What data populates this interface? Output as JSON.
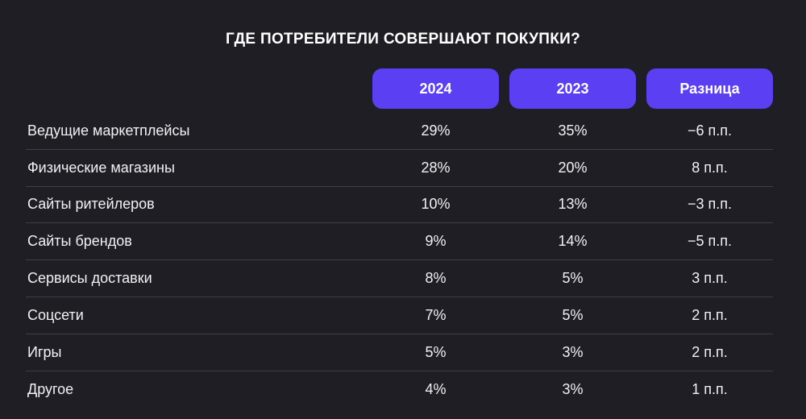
{
  "chart_data": {
    "type": "table",
    "title": "ГДЕ ПОТРЕБИТЕЛИ СОВЕРШАЮТ ПОКУПКИ?",
    "columns": [
      "2024",
      "2023",
      "Разница"
    ],
    "rows": [
      {
        "label": "Ведущие маркетплейсы",
        "values": [
          "29%",
          "35%",
          "−6 п.п."
        ]
      },
      {
        "label": "Физические магазины",
        "values": [
          "28%",
          "20%",
          "8 п.п."
        ]
      },
      {
        "label": "Сайты ритейлеров",
        "values": [
          "10%",
          "13%",
          "−3 п.п."
        ]
      },
      {
        "label": "Сайты брендов",
        "values": [
          "9%",
          "14%",
          "−5 п.п."
        ]
      },
      {
        "label": "Сервисы доставки",
        "values": [
          "8%",
          "5%",
          "3 п.п."
        ]
      },
      {
        "label": "Соцсети",
        "values": [
          "7%",
          "5%",
          "2 п.п."
        ]
      },
      {
        "label": "Игры",
        "values": [
          "5%",
          "3%",
          "2 п.п."
        ]
      },
      {
        "label": "Другое",
        "values": [
          "4%",
          "3%",
          "1 п.п."
        ]
      }
    ]
  },
  "colors": {
    "background": "#1e1e24",
    "header_accent": "#5b3ff2",
    "text": "#ffffff",
    "divider": "#3f3f48"
  }
}
